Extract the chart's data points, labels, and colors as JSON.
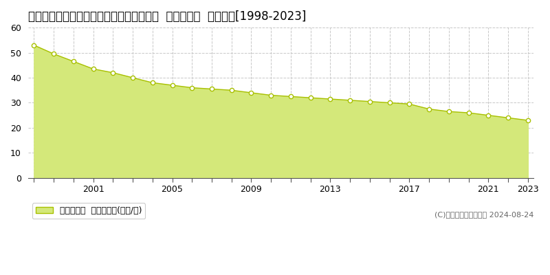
{
  "title": "神奈川県中郡二宮町緑が丘２丁目１７番４  基準地価格  地価推移[1998-2023]",
  "years": [
    1998,
    1999,
    2000,
    2001,
    2002,
    2003,
    2004,
    2005,
    2006,
    2007,
    2008,
    2009,
    2010,
    2011,
    2012,
    2013,
    2014,
    2015,
    2016,
    2017,
    2018,
    2019,
    2020,
    2021,
    2022,
    2023
  ],
  "values": [
    53,
    49.5,
    46.5,
    43.5,
    42,
    40,
    38,
    37,
    36,
    35.5,
    35,
    34,
    33,
    32.5,
    32,
    31.5,
    31,
    30.5,
    30,
    29.5,
    27.5,
    26.5,
    26,
    25,
    24,
    23
  ],
  "line_color": "#a8c000",
  "fill_color": "#d4e87a",
  "marker_face_color": "#ffffff",
  "marker_edge_color": "#a8c000",
  "background_color": "#ffffff",
  "grid_color": "#c8c8c8",
  "ylim": [
    0,
    60
  ],
  "yticks": [
    0,
    10,
    20,
    30,
    40,
    50,
    60
  ],
  "xtick_labeled": [
    2001,
    2005,
    2009,
    2013,
    2017,
    2021,
    2023
  ],
  "legend_label": "基準地価格  平均坪単価(万円/坪)",
  "copyright_text": "(C)土地価格ドットコム 2024-08-24",
  "title_fontsize": 12,
  "axis_fontsize": 9,
  "legend_fontsize": 9
}
